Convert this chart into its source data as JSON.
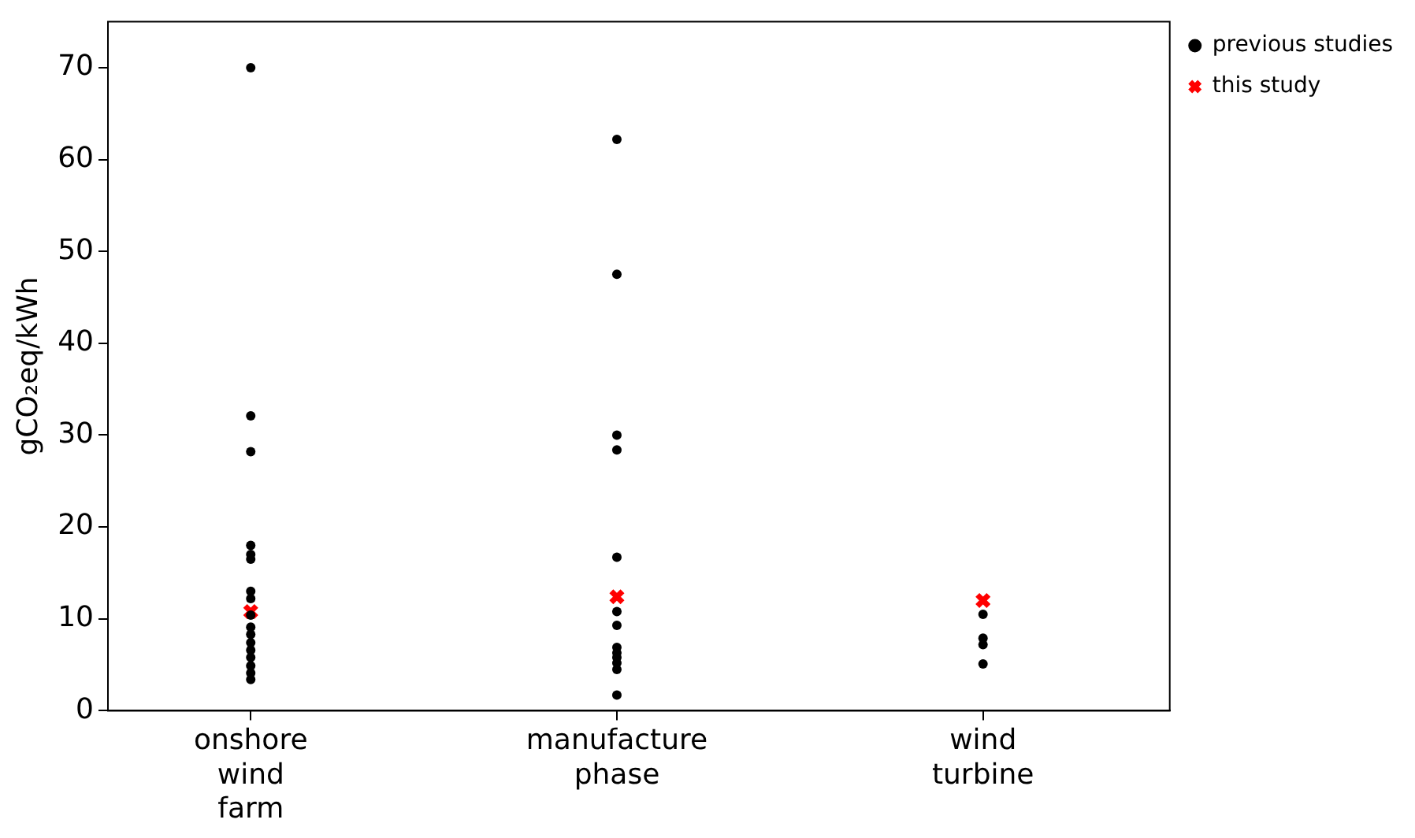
{
  "chart_data": {
    "type": "scatter",
    "ylabel": "gCO₂eq/kWh",
    "categories": [
      "onshore wind farm",
      "manufacture phase",
      "wind turbine"
    ],
    "ylim": [
      0,
      75
    ],
    "yticks": [
      0,
      10,
      20,
      30,
      40,
      50,
      60,
      70
    ],
    "grid": false,
    "legend": "top right",
    "series": [
      {
        "name": "previous studies",
        "color": "#000000",
        "marker": "circle",
        "x": [
          "onshore wind farm",
          "onshore wind farm",
          "onshore wind farm",
          "onshore wind farm",
          "onshore wind farm",
          "onshore wind farm",
          "onshore wind farm",
          "onshore wind farm",
          "onshore wind farm",
          "onshore wind farm",
          "onshore wind farm",
          "onshore wind farm",
          "onshore wind farm",
          "onshore wind farm",
          "onshore wind farm",
          "onshore wind farm",
          "onshore wind farm",
          "onshore wind farm",
          "manufacture phase",
          "manufacture phase",
          "manufacture phase",
          "manufacture phase",
          "manufacture phase",
          "manufacture phase",
          "manufacture phase",
          "manufacture phase",
          "manufacture phase",
          "manufacture phase",
          "manufacture phase",
          "manufacture phase",
          "manufacture phase",
          "wind turbine",
          "wind turbine",
          "wind turbine",
          "wind turbine"
        ],
        "values": [
          70,
          32.1,
          28.2,
          18,
          17,
          16.5,
          13,
          12.2,
          null,
          9.1,
          8.3,
          7.4,
          6.6,
          5.8,
          4.9,
          4.1,
          3.4,
          10.4,
          62.2,
          47.5,
          30,
          28.4,
          16.7,
          10.8,
          9.3,
          6.9,
          6.3,
          5.8,
          5.2,
          4.5,
          1.7,
          10.5,
          7.9,
          7.2,
          5.1
        ]
      },
      {
        "name": "this study",
        "color": "#ff0000",
        "marker": "cross",
        "x": [
          "onshore wind farm",
          "manufacture phase",
          "wind turbine"
        ],
        "values": [
          10.8,
          12.4,
          12
        ]
      }
    ]
  }
}
